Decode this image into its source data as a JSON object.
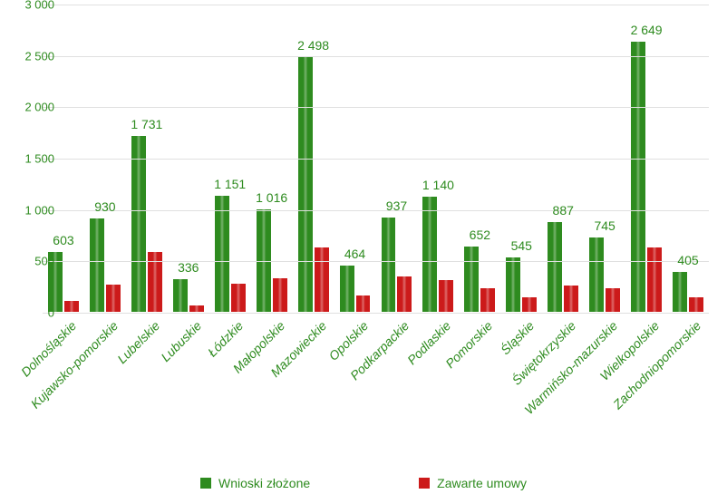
{
  "chart": {
    "type": "bar",
    "categories": [
      "Dolnośląskie",
      "Kujawsko-pomorskie",
      "Lubelskie",
      "Lubuskie",
      "Łódzkie",
      "Małopolskie",
      "Mazowieckie",
      "Opolskie",
      "Podkarpackie",
      "Podlaskie",
      "Pomorskie",
      "Śląskie",
      "Świętokrzyskie",
      "Warmińsko-mazurskie",
      "Wielkopolskie",
      "Zachodniopomorskie"
    ],
    "series": [
      {
        "name": "Wnioski złożone",
        "color": "#2e8b1f",
        "values": [
          603,
          930,
          1731,
          336,
          1151,
          1016,
          2498,
          464,
          937,
          1140,
          652,
          545,
          887,
          745,
          2649,
          405
        ],
        "labels": [
          "603",
          "930",
          "1 731",
          "336",
          "1 151",
          "1 016",
          "2 498",
          "464",
          "937",
          "1 140",
          "652",
          "545",
          "887",
          "745",
          "2 649",
          "405"
        ]
      },
      {
        "name": "Zawarte umowy",
        "color": "#cc1a1a",
        "values": [
          123,
          285,
          598,
          77,
          290,
          340,
          645,
          180,
          358,
          323,
          243,
          158,
          270,
          243,
          640,
          160
        ]
      }
    ],
    "ylim": [
      0,
      3000
    ],
    "yticks": [
      0,
      500,
      1000,
      1500,
      2000,
      2500,
      3000
    ],
    "ytick_labels": [
      "0",
      "500",
      "1 000",
      "1 500",
      "2 000",
      "2 500",
      "3 000"
    ],
    "grid_color": "#e0e0e0",
    "background_color": "#ffffff",
    "axis_tick_fontsize": 13,
    "xlabel_fontsize": 14,
    "barlabel_fontsize": 14,
    "legend_fontsize": 14,
    "text_color": "#2e8b1f",
    "bar_border_color": "#ffffff",
    "bar_group_width": 0.78,
    "bar_rel_width": 0.5
  }
}
